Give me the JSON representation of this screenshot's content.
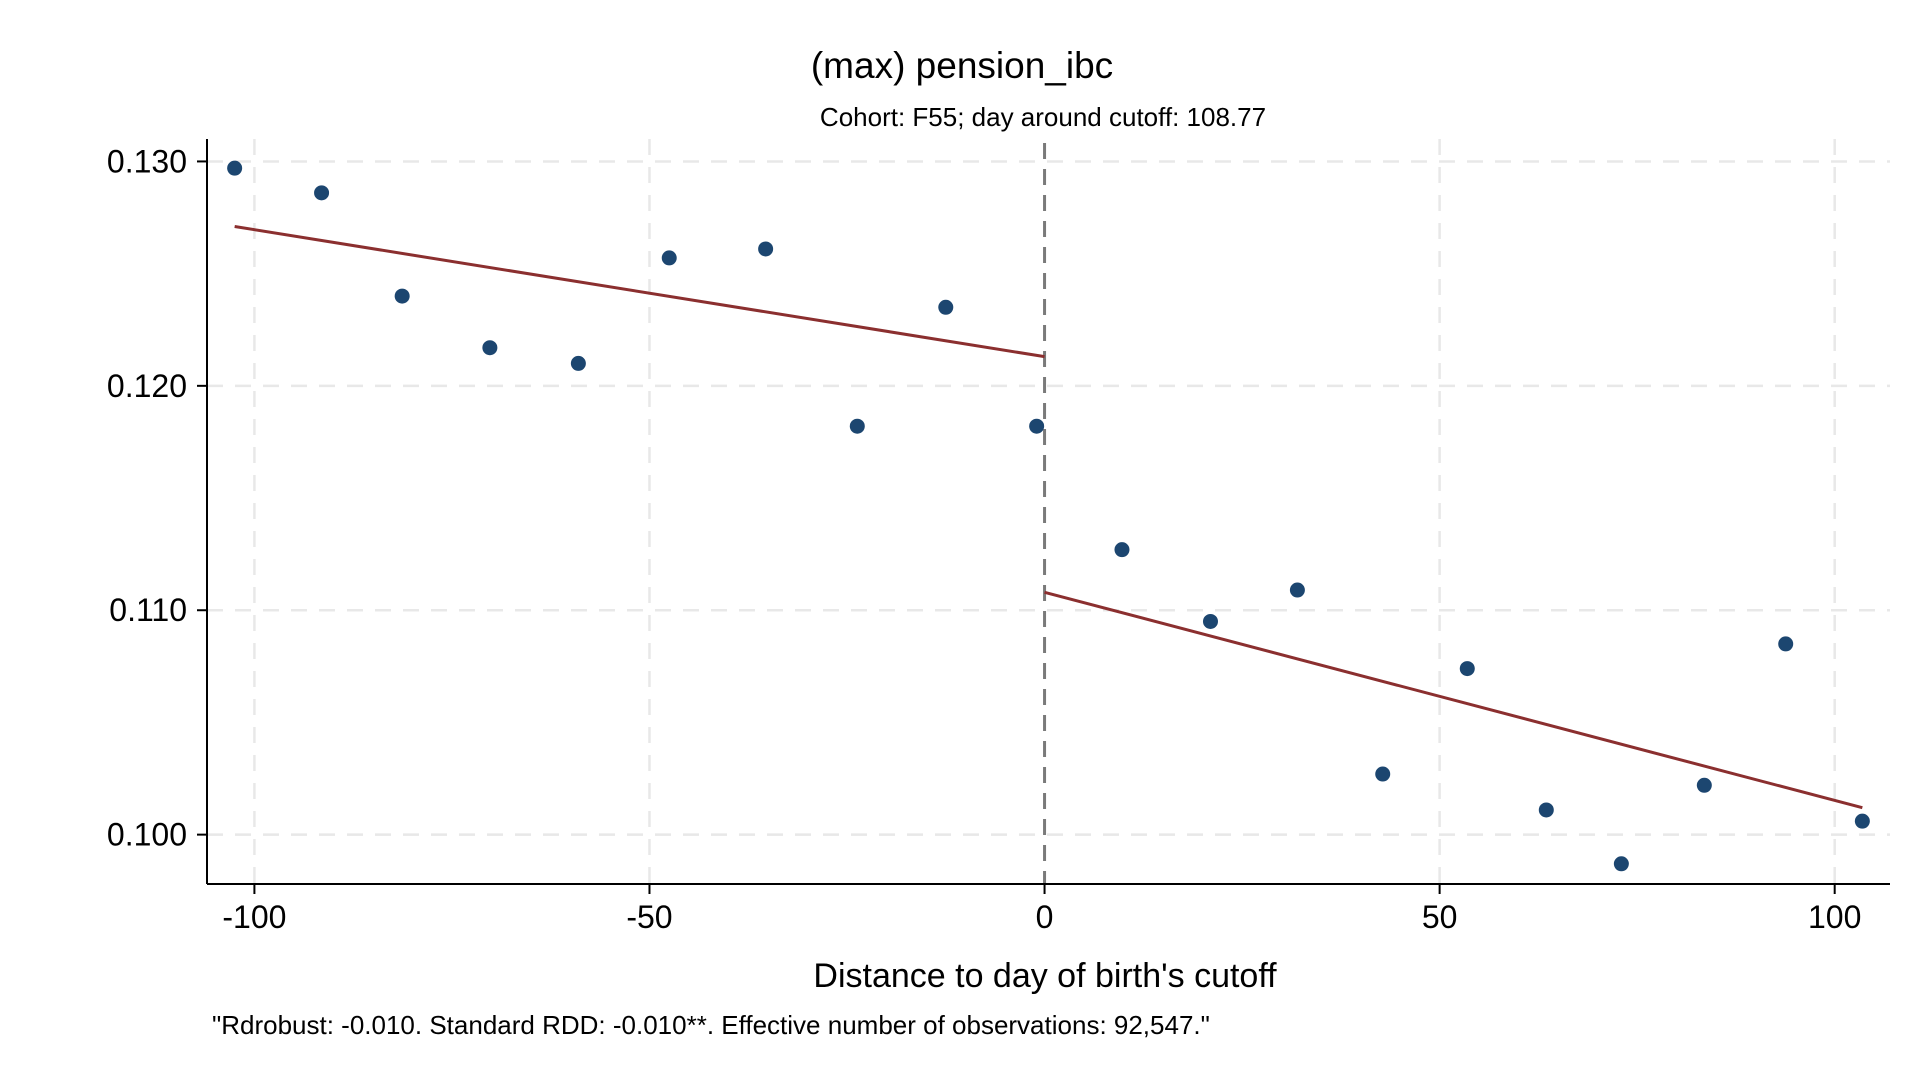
{
  "chart_data": {
    "type": "scatter",
    "title": "(max) pension_ibc",
    "subtitle": "Cohort: F55; day around cutoff:  108.77",
    "xlabel": "Distance to day of birth's cutoff",
    "ylabel": "",
    "note": "\"Rdrobust: -0.010. Standard RDD: -0.010**. Effective number of observations: 92,547.\"",
    "xlim": [
      -106,
      107
    ],
    "ylim": [
      0.0978,
      0.131
    ],
    "x_ticks": [
      -100,
      -50,
      0,
      50,
      100
    ],
    "x_tick_labels": [
      "-100",
      "-50",
      "0",
      "50",
      "100"
    ],
    "y_ticks": [
      0.1,
      0.11,
      0.12,
      0.13
    ],
    "y_tick_labels": [
      "0.100",
      "0.110",
      "0.120",
      "0.130"
    ],
    "grid": true,
    "cutoff": 0,
    "series": [
      {
        "kind": "points",
        "x": [
          -102.5,
          -91.5,
          -81.3,
          -70.2,
          -59.0,
          -47.5,
          -35.3,
          -23.7,
          -12.5,
          -1.0,
          9.8,
          21.0,
          32.0,
          42.8,
          53.5,
          63.5,
          73.0,
          83.5,
          93.8,
          103.5
        ],
        "y": [
          0.1297,
          0.1286,
          0.124,
          0.1217,
          0.121,
          0.1257,
          0.1261,
          0.1182,
          0.1235,
          0.1182,
          0.1127,
          0.1095,
          0.1109,
          0.1027,
          0.1074,
          0.1011,
          0.0987,
          0.1022,
          0.1085,
          0.1006
        ]
      },
      {
        "kind": "fit-left",
        "x": [
          -102.5,
          0
        ],
        "y": [
          0.1271,
          0.1213
        ]
      },
      {
        "kind": "fit-right",
        "x": [
          0,
          103.5
        ],
        "y": [
          0.1108,
          0.1012
        ]
      }
    ],
    "colors": {
      "points": "#1c4670",
      "fit": "#8b2f2f",
      "cutoff": "#7a7a7a",
      "grid": "#e8e8e8"
    }
  }
}
